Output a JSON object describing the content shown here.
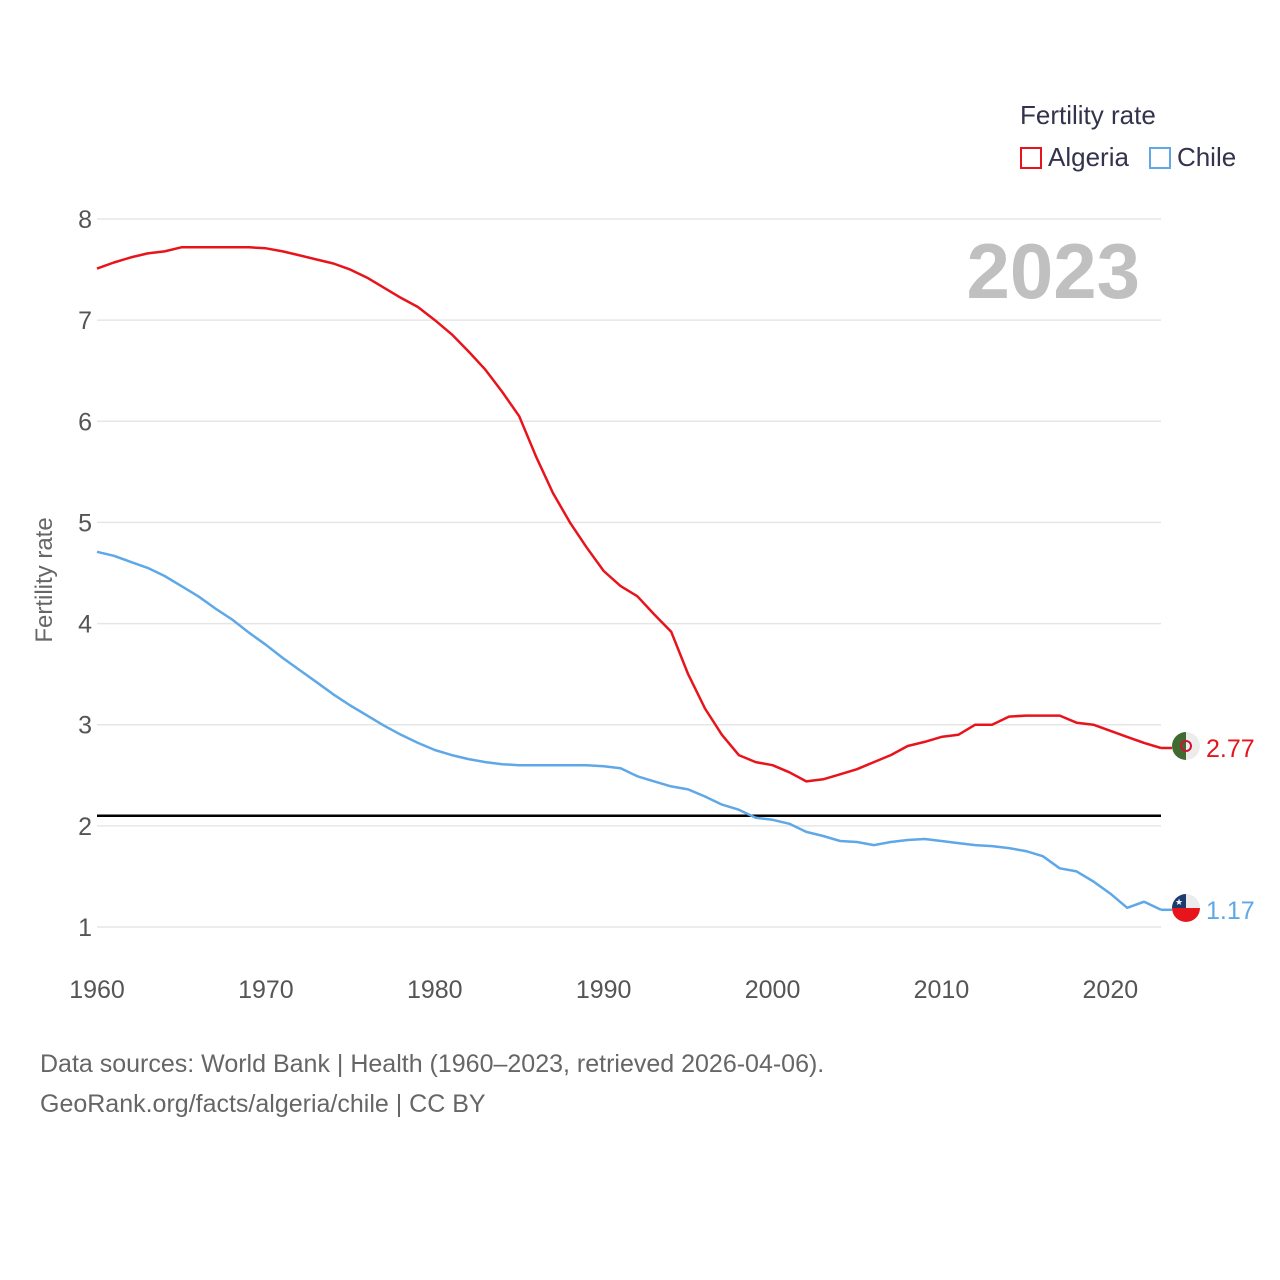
{
  "legend": {
    "title": "Fertility rate",
    "items": [
      {
        "label": "Algeria",
        "color": "#e8141c"
      },
      {
        "label": "Chile",
        "color": "#5fa8e8"
      }
    ]
  },
  "footer": {
    "line1": "Data sources: World Bank | Health (1960–2023, retrieved 2026-04-06).",
    "line2": "GeoRank.org/facts/algeria/chile | CC BY"
  },
  "chart_data": {
    "type": "line",
    "year_label": "2023",
    "ylabel": "Fertility rate",
    "xlim": [
      1960,
      2023
    ],
    "ylim": [
      1,
      8
    ],
    "y_ticks": [
      1,
      2,
      3,
      4,
      5,
      6,
      7,
      8
    ],
    "x_ticks": [
      1960,
      1970,
      1980,
      1990,
      2000,
      2010,
      2020
    ],
    "reference_line": 2.1,
    "x": [
      1960,
      1961,
      1962,
      1963,
      1964,
      1965,
      1966,
      1967,
      1968,
      1969,
      1970,
      1971,
      1972,
      1973,
      1974,
      1975,
      1976,
      1977,
      1978,
      1979,
      1980,
      1981,
      1982,
      1983,
      1984,
      1985,
      1986,
      1987,
      1988,
      1989,
      1990,
      1991,
      1992,
      1993,
      1994,
      1995,
      1996,
      1997,
      1998,
      1999,
      2000,
      2001,
      2002,
      2003,
      2004,
      2005,
      2006,
      2007,
      2008,
      2009,
      2010,
      2011,
      2012,
      2013,
      2014,
      2015,
      2016,
      2017,
      2018,
      2019,
      2020,
      2021,
      2022,
      2023
    ],
    "series": [
      {
        "name": "Algeria",
        "color": "#e8141c",
        "end_label": "2.77",
        "values": [
          7.51,
          7.57,
          7.62,
          7.66,
          7.68,
          7.72,
          7.72,
          7.72,
          7.72,
          7.72,
          7.71,
          7.68,
          7.64,
          7.6,
          7.56,
          7.5,
          7.42,
          7.32,
          7.22,
          7.13,
          7.0,
          6.86,
          6.69,
          6.51,
          6.29,
          6.05,
          5.65,
          5.29,
          5.0,
          4.75,
          4.52,
          4.37,
          4.27,
          4.09,
          3.92,
          3.5,
          3.16,
          2.9,
          2.7,
          2.63,
          2.6,
          2.53,
          2.44,
          2.46,
          2.51,
          2.56,
          2.63,
          2.7,
          2.79,
          2.83,
          2.88,
          2.9,
          3.0,
          3.0,
          3.08,
          3.09,
          3.09,
          3.09,
          3.02,
          3.0,
          2.94,
          2.88,
          2.82,
          2.77
        ]
      },
      {
        "name": "Chile",
        "color": "#5fa8e8",
        "end_label": "1.17",
        "values": [
          4.71,
          4.67,
          4.61,
          4.55,
          4.47,
          4.37,
          4.27,
          4.15,
          4.04,
          3.91,
          3.79,
          3.66,
          3.54,
          3.42,
          3.3,
          3.19,
          3.09,
          2.99,
          2.9,
          2.82,
          2.75,
          2.7,
          2.66,
          2.63,
          2.61,
          2.6,
          2.6,
          2.6,
          2.6,
          2.6,
          2.59,
          2.57,
          2.49,
          2.44,
          2.39,
          2.36,
          2.29,
          2.21,
          2.16,
          2.08,
          2.06,
          2.02,
          1.94,
          1.9,
          1.85,
          1.84,
          1.81,
          1.84,
          1.86,
          1.87,
          1.85,
          1.83,
          1.81,
          1.8,
          1.78,
          1.75,
          1.7,
          1.58,
          1.55,
          1.45,
          1.33,
          1.19,
          1.25,
          1.17
        ]
      }
    ]
  }
}
